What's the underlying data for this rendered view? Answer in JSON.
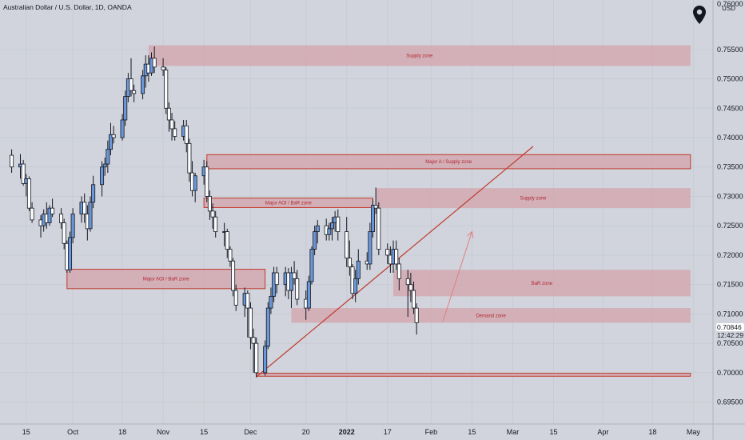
{
  "header": {
    "symbol": "Australian Dollar / U.S. Dollar, 1D, OANDA",
    "currency": "USD"
  },
  "current_price": "0.70846",
  "countdown": "12:42:29",
  "colors": {
    "background": "#d1d4dc",
    "bull_body": "#6b97d6",
    "bear_body": "#ffffff",
    "wick": "#131722",
    "zone_fill": "#d4a8b0",
    "zone_border": "#c0392b",
    "zone_text": "#b22833",
    "trendline": "#c0392b",
    "arrow": "#e08080"
  },
  "chart_data": {
    "type": "candlestick",
    "y_axis": {
      "ticks": [
        "0.75500",
        "0.75000",
        "0.74500",
        "0.74000",
        "0.73500",
        "0.73000",
        "0.72500",
        "0.72000",
        "0.71500",
        "0.71000",
        "0.70500",
        "0.70000",
        "0.69500"
      ],
      "range": [
        0.6925,
        0.763
      ]
    },
    "x_axis": {
      "ticks": [
        "15",
        "Oct",
        "18",
        "Nov",
        "15",
        "Dec",
        "20",
        "2022",
        "17",
        "Feb",
        "15",
        "Mar",
        "15",
        "Apr",
        "18",
        "May"
      ]
    },
    "zones": [
      {
        "label": "Supply zone",
        "top": 0.7557,
        "bottom": 0.7522,
        "x_from": "2021-10-27",
        "x_to": "2022-05-01",
        "bordered": false
      },
      {
        "label": "Major A / Supply zone",
        "top": 0.7371,
        "bottom": 0.7347,
        "x_from": "2021-11-16",
        "x_to": "2022-05-01",
        "bordered": true
      },
      {
        "label": "Major AOI / BaR zone",
        "top": 0.7297,
        "bottom": 0.7281,
        "x_from": "2021-11-15",
        "x_to": "2022-01-12",
        "bordered": true
      },
      {
        "label": "Supply zone",
        "top": 0.7314,
        "bottom": 0.728,
        "x_from": "2022-01-13",
        "x_to": "2022-05-01",
        "bordered": false
      },
      {
        "label": "Major AOI / BaR zone",
        "top": 0.7176,
        "bottom": 0.7143,
        "x_from": "2021-09-29",
        "x_to": "2021-12-06",
        "bordered": true
      },
      {
        "label": "BaR zone",
        "top": 0.7175,
        "bottom": 0.713,
        "x_from": "2022-01-19",
        "x_to": "2022-05-01",
        "bordered": false
      },
      {
        "label": "Demand zone",
        "top": 0.711,
        "bottom": 0.7085,
        "x_from": "2021-12-15",
        "x_to": "2022-05-01",
        "bordered": false
      },
      {
        "label": "",
        "top": 0.6999,
        "bottom": 0.6994,
        "x_from": "2021-12-03",
        "x_to": "2022-05-01",
        "bordered": true
      }
    ],
    "trendline": {
      "from": [
        "2021-12-03",
        0.6993
      ],
      "to": [
        "2022-03-08",
        0.7385
      ]
    },
    "arrow": {
      "from": [
        "2022-02-05",
        0.7087
      ],
      "to": [
        "2022-02-15",
        0.724
      ]
    },
    "candles": [
      {
        "d": "2021-09-10",
        "o": 0.737,
        "h": 0.738,
        "l": 0.734,
        "c": 0.735
      },
      {
        "d": "2021-09-13",
        "o": 0.735,
        "h": 0.7372,
        "l": 0.733,
        "c": 0.7355
      },
      {
        "d": "2021-09-14",
        "o": 0.7355,
        "h": 0.7362,
        "l": 0.7318,
        "c": 0.7322
      },
      {
        "d": "2021-09-15",
        "o": 0.7322,
        "h": 0.7338,
        "l": 0.73,
        "c": 0.733
      },
      {
        "d": "2021-09-16",
        "o": 0.733,
        "h": 0.7334,
        "l": 0.7275,
        "c": 0.728
      },
      {
        "d": "2021-09-17",
        "o": 0.728,
        "h": 0.729,
        "l": 0.7255,
        "c": 0.726
      },
      {
        "d": "2021-09-20",
        "o": 0.726,
        "h": 0.7268,
        "l": 0.723,
        "c": 0.725
      },
      {
        "d": "2021-09-21",
        "o": 0.725,
        "h": 0.7278,
        "l": 0.724,
        "c": 0.727
      },
      {
        "d": "2021-09-22",
        "o": 0.727,
        "h": 0.729,
        "l": 0.7245,
        "c": 0.7255
      },
      {
        "d": "2021-09-23",
        "o": 0.7255,
        "h": 0.7285,
        "l": 0.725,
        "c": 0.728
      },
      {
        "d": "2021-09-24",
        "o": 0.728,
        "h": 0.7296,
        "l": 0.7265,
        "c": 0.727
      },
      {
        "d": "2021-09-27",
        "o": 0.727,
        "h": 0.728,
        "l": 0.7245,
        "c": 0.7255
      },
      {
        "d": "2021-09-28",
        "o": 0.7255,
        "h": 0.7262,
        "l": 0.721,
        "c": 0.722
      },
      {
        "d": "2021-09-29",
        "o": 0.722,
        "h": 0.7225,
        "l": 0.717,
        "c": 0.7175
      },
      {
        "d": "2021-09-30",
        "o": 0.7175,
        "h": 0.724,
        "l": 0.717,
        "c": 0.723
      },
      {
        "d": "2021-10-01",
        "o": 0.723,
        "h": 0.728,
        "l": 0.722,
        "c": 0.727
      },
      {
        "d": "2021-10-04",
        "o": 0.727,
        "h": 0.73,
        "l": 0.7255,
        "c": 0.729
      },
      {
        "d": "2021-10-05",
        "o": 0.729,
        "h": 0.7305,
        "l": 0.7255,
        "c": 0.727
      },
      {
        "d": "2021-10-06",
        "o": 0.727,
        "h": 0.7285,
        "l": 0.7225,
        "c": 0.7245
      },
      {
        "d": "2021-10-07",
        "o": 0.7245,
        "h": 0.73,
        "l": 0.724,
        "c": 0.729
      },
      {
        "d": "2021-10-08",
        "o": 0.729,
        "h": 0.7335,
        "l": 0.728,
        "c": 0.732
      },
      {
        "d": "2021-10-11",
        "o": 0.732,
        "h": 0.736,
        "l": 0.73,
        "c": 0.735
      },
      {
        "d": "2021-10-12",
        "o": 0.735,
        "h": 0.7366,
        "l": 0.7335,
        "c": 0.7355
      },
      {
        "d": "2021-10-13",
        "o": 0.7355,
        "h": 0.7395,
        "l": 0.734,
        "c": 0.738
      },
      {
        "d": "2021-10-14",
        "o": 0.738,
        "h": 0.7425,
        "l": 0.737,
        "c": 0.7405
      },
      {
        "d": "2021-10-15",
        "o": 0.7405,
        "h": 0.742,
        "l": 0.739,
        "c": 0.74
      },
      {
        "d": "2021-10-18",
        "o": 0.74,
        "h": 0.744,
        "l": 0.7395,
        "c": 0.743
      },
      {
        "d": "2021-10-19",
        "o": 0.743,
        "h": 0.748,
        "l": 0.742,
        "c": 0.747
      },
      {
        "d": "2021-10-20",
        "o": 0.747,
        "h": 0.751,
        "l": 0.746,
        "c": 0.75
      },
      {
        "d": "2021-10-21",
        "o": 0.75,
        "h": 0.7535,
        "l": 0.747,
        "c": 0.748
      },
      {
        "d": "2021-10-22",
        "o": 0.748,
        "h": 0.749,
        "l": 0.746,
        "c": 0.7475
      },
      {
        "d": "2021-10-25",
        "o": 0.7475,
        "h": 0.7515,
        "l": 0.7465,
        "c": 0.7505
      },
      {
        "d": "2021-10-26",
        "o": 0.7505,
        "h": 0.754,
        "l": 0.7485,
        "c": 0.7525
      },
      {
        "d": "2021-10-27",
        "o": 0.7525,
        "h": 0.754,
        "l": 0.7495,
        "c": 0.751
      },
      {
        "d": "2021-10-28",
        "o": 0.751,
        "h": 0.7545,
        "l": 0.7505,
        "c": 0.7535
      },
      {
        "d": "2021-10-29",
        "o": 0.7535,
        "h": 0.7555,
        "l": 0.751,
        "c": 0.752
      },
      {
        "d": "2021-11-01",
        "o": 0.752,
        "h": 0.7535,
        "l": 0.7505,
        "c": 0.7515
      },
      {
        "d": "2021-11-02",
        "o": 0.7515,
        "h": 0.752,
        "l": 0.744,
        "c": 0.745
      },
      {
        "d": "2021-11-03",
        "o": 0.745,
        "h": 0.746,
        "l": 0.741,
        "c": 0.743
      },
      {
        "d": "2021-11-04",
        "o": 0.743,
        "h": 0.7442,
        "l": 0.7395,
        "c": 0.7415
      },
      {
        "d": "2021-11-05",
        "o": 0.7415,
        "h": 0.7428,
        "l": 0.7395,
        "c": 0.7402
      },
      {
        "d": "2021-11-08",
        "o": 0.7402,
        "h": 0.743,
        "l": 0.7395,
        "c": 0.742
      },
      {
        "d": "2021-11-09",
        "o": 0.742,
        "h": 0.743,
        "l": 0.7375,
        "c": 0.739
      },
      {
        "d": "2021-11-10",
        "o": 0.739,
        "h": 0.7398,
        "l": 0.7325,
        "c": 0.734
      },
      {
        "d": "2021-11-11",
        "o": 0.734,
        "h": 0.736,
        "l": 0.73,
        "c": 0.731
      },
      {
        "d": "2021-11-12",
        "o": 0.731,
        "h": 0.734,
        "l": 0.729,
        "c": 0.7335
      },
      {
        "d": "2021-11-15",
        "o": 0.7335,
        "h": 0.7362,
        "l": 0.732,
        "c": 0.735
      },
      {
        "d": "2021-11-16",
        "o": 0.735,
        "h": 0.736,
        "l": 0.729,
        "c": 0.73
      },
      {
        "d": "2021-11-17",
        "o": 0.73,
        "h": 0.731,
        "l": 0.726,
        "c": 0.7275
      },
      {
        "d": "2021-11-18",
        "o": 0.7275,
        "h": 0.7288,
        "l": 0.7245,
        "c": 0.7265
      },
      {
        "d": "2021-11-19",
        "o": 0.7265,
        "h": 0.7275,
        "l": 0.723,
        "c": 0.724
      },
      {
        "d": "2021-11-22",
        "o": 0.724,
        "h": 0.7255,
        "l": 0.7215,
        "c": 0.724
      },
      {
        "d": "2021-11-23",
        "o": 0.724,
        "h": 0.7245,
        "l": 0.7195,
        "c": 0.721
      },
      {
        "d": "2021-11-24",
        "o": 0.721,
        "h": 0.7215,
        "l": 0.718,
        "c": 0.719
      },
      {
        "d": "2021-11-25",
        "o": 0.719,
        "h": 0.7195,
        "l": 0.713,
        "c": 0.714
      },
      {
        "d": "2021-11-26",
        "o": 0.714,
        "h": 0.715,
        "l": 0.7105,
        "c": 0.7115
      },
      {
        "d": "2021-11-29",
        "o": 0.7115,
        "h": 0.7145,
        "l": 0.7095,
        "c": 0.7135
      },
      {
        "d": "2021-11-30",
        "o": 0.7135,
        "h": 0.714,
        "l": 0.706,
        "c": 0.711
      },
      {
        "d": "2021-12-01",
        "o": 0.711,
        "h": 0.712,
        "l": 0.704,
        "c": 0.706
      },
      {
        "d": "2021-12-02",
        "o": 0.706,
        "h": 0.7075,
        "l": 0.7,
        "c": 0.705
      },
      {
        "d": "2021-12-03",
        "o": 0.705,
        "h": 0.706,
        "l": 0.6992,
        "c": 0.7
      },
      {
        "d": "2021-12-06",
        "o": 0.7,
        "h": 0.7055,
        "l": 0.6995,
        "c": 0.7045
      },
      {
        "d": "2021-12-07",
        "o": 0.7045,
        "h": 0.712,
        "l": 0.704,
        "c": 0.711
      },
      {
        "d": "2021-12-08",
        "o": 0.711,
        "h": 0.7145,
        "l": 0.71,
        "c": 0.713
      },
      {
        "d": "2021-12-09",
        "o": 0.713,
        "h": 0.718,
        "l": 0.712,
        "c": 0.717
      },
      {
        "d": "2021-12-10",
        "o": 0.717,
        "h": 0.718,
        "l": 0.7135,
        "c": 0.715
      },
      {
        "d": "2021-12-13",
        "o": 0.715,
        "h": 0.718,
        "l": 0.713,
        "c": 0.717
      },
      {
        "d": "2021-12-14",
        "o": 0.717,
        "h": 0.7178,
        "l": 0.7125,
        "c": 0.714
      },
      {
        "d": "2021-12-15",
        "o": 0.714,
        "h": 0.718,
        "l": 0.711,
        "c": 0.717
      },
      {
        "d": "2021-12-16",
        "o": 0.717,
        "h": 0.719,
        "l": 0.715,
        "c": 0.716
      },
      {
        "d": "2021-12-17",
        "o": 0.716,
        "h": 0.7175,
        "l": 0.7115,
        "c": 0.7125
      },
      {
        "d": "2021-12-20",
        "o": 0.7125,
        "h": 0.714,
        "l": 0.709,
        "c": 0.711
      },
      {
        "d": "2021-12-21",
        "o": 0.711,
        "h": 0.7165,
        "l": 0.7105,
        "c": 0.7155
      },
      {
        "d": "2021-12-22",
        "o": 0.7155,
        "h": 0.7215,
        "l": 0.715,
        "c": 0.721
      },
      {
        "d": "2021-12-23",
        "o": 0.721,
        "h": 0.725,
        "l": 0.72,
        "c": 0.724
      },
      {
        "d": "2021-12-24",
        "o": 0.724,
        "h": 0.726,
        "l": 0.722,
        "c": 0.725
      },
      {
        "d": "2021-12-27",
        "o": 0.725,
        "h": 0.7262,
        "l": 0.7225,
        "c": 0.7235
      },
      {
        "d": "2021-12-28",
        "o": 0.7235,
        "h": 0.7255,
        "l": 0.7225,
        "c": 0.7245
      },
      {
        "d": "2021-12-29",
        "o": 0.7245,
        "h": 0.7265,
        "l": 0.7225,
        "c": 0.7255
      },
      {
        "d": "2021-12-30",
        "o": 0.7255,
        "h": 0.7275,
        "l": 0.724,
        "c": 0.7265
      },
      {
        "d": "2021-12-31",
        "o": 0.7265,
        "h": 0.7278,
        "l": 0.7225,
        "c": 0.724
      },
      {
        "d": "2022-01-03",
        "o": 0.724,
        "h": 0.7265,
        "l": 0.718,
        "c": 0.7195
      },
      {
        "d": "2022-01-04",
        "o": 0.7195,
        "h": 0.7225,
        "l": 0.7165,
        "c": 0.718
      },
      {
        "d": "2022-01-05",
        "o": 0.718,
        "h": 0.7185,
        "l": 0.7125,
        "c": 0.7135
      },
      {
        "d": "2022-01-06",
        "o": 0.7135,
        "h": 0.7175,
        "l": 0.712,
        "c": 0.716
      },
      {
        "d": "2022-01-07",
        "o": 0.716,
        "h": 0.721,
        "l": 0.715,
        "c": 0.719
      },
      {
        "d": "2022-01-10",
        "o": 0.719,
        "h": 0.7205,
        "l": 0.7175,
        "c": 0.7185
      },
      {
        "d": "2022-01-11",
        "o": 0.7185,
        "h": 0.7255,
        "l": 0.7175,
        "c": 0.724
      },
      {
        "d": "2022-01-12",
        "o": 0.724,
        "h": 0.7295,
        "l": 0.723,
        "c": 0.7285
      },
      {
        "d": "2022-01-13",
        "o": 0.7285,
        "h": 0.7315,
        "l": 0.727,
        "c": 0.728
      },
      {
        "d": "2022-01-14",
        "o": 0.728,
        "h": 0.729,
        "l": 0.72,
        "c": 0.721
      },
      {
        "d": "2022-01-17",
        "o": 0.721,
        "h": 0.722,
        "l": 0.7185,
        "c": 0.72
      },
      {
        "d": "2022-01-18",
        "o": 0.72,
        "h": 0.7215,
        "l": 0.717,
        "c": 0.7185
      },
      {
        "d": "2022-01-19",
        "o": 0.7185,
        "h": 0.7225,
        "l": 0.717,
        "c": 0.721
      },
      {
        "d": "2022-01-20",
        "o": 0.721,
        "h": 0.7225,
        "l": 0.7175,
        "c": 0.7185
      },
      {
        "d": "2022-01-21",
        "o": 0.7185,
        "h": 0.7195,
        "l": 0.714,
        "c": 0.716
      },
      {
        "d": "2022-01-24",
        "o": 0.716,
        "h": 0.7175,
        "l": 0.7095,
        "c": 0.715
      },
      {
        "d": "2022-01-25",
        "o": 0.715,
        "h": 0.717,
        "l": 0.712,
        "c": 0.714
      },
      {
        "d": "2022-01-26",
        "o": 0.714,
        "h": 0.7155,
        "l": 0.71,
        "c": 0.711
      },
      {
        "d": "2022-01-27",
        "o": 0.711,
        "h": 0.7118,
        "l": 0.7065,
        "c": 0.7085
      }
    ]
  }
}
